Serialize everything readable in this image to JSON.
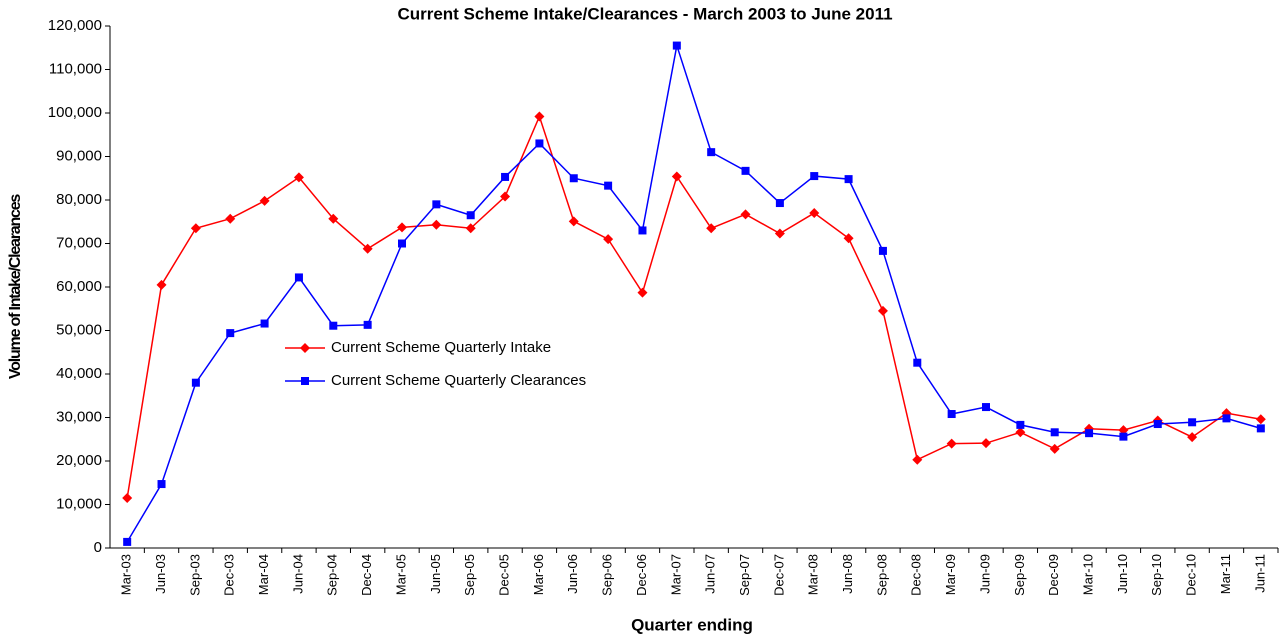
{
  "chart_data": {
    "type": "line",
    "title": "Current Scheme Intake/Clearances - March 2003 to June 2011",
    "x_label": "Quarter ending",
    "y_label": "Volume of Intake/Clearances",
    "categories": [
      "Mar-03",
      "Jun-03",
      "Sep-03",
      "Dec-03",
      "Mar-04",
      "Jun-04",
      "Sep-04",
      "Dec-04",
      "Mar-05",
      "Jun-05",
      "Sep-05",
      "Dec-05",
      "Mar-06",
      "Jun-06",
      "Sep-06",
      "Dec-06",
      "Mar-07",
      "Jun-07",
      "Sep-07",
      "Dec-07",
      "Mar-08",
      "Jun-08",
      "Sep-08",
      "Dec-08",
      "Mar-09",
      "Jun-09",
      "Sep-09",
      "Dec-09",
      "Mar-10",
      "Jun-10",
      "Sep-10",
      "Dec-10",
      "Mar-11",
      "Jun-11"
    ],
    "series": [
      {
        "name": "Current Scheme Quarterly Intake",
        "color": "#ff0000",
        "marker": "diamond",
        "values": [
          11500,
          60500,
          73500,
          75700,
          79800,
          85200,
          75700,
          68800,
          73700,
          74300,
          73500,
          80800,
          99200,
          75100,
          71000,
          58700,
          85400,
          73500,
          76700,
          72300,
          77000,
          71200,
          54500,
          20300,
          24000,
          24100,
          26600,
          22800,
          27400,
          27100,
          29300,
          25500,
          31000,
          29600
        ]
      },
      {
        "name": "Current Scheme Quarterly Clearances",
        "color": "#0000ff",
        "marker": "square",
        "values": [
          1400,
          14700,
          38000,
          49400,
          51600,
          62200,
          51100,
          51300,
          70000,
          79000,
          76500,
          85300,
          93000,
          85000,
          83300,
          73000,
          115500,
          91000,
          86700,
          79300,
          85500,
          84800,
          68300,
          42600,
          30800,
          32400,
          28300,
          26600,
          26400,
          25600,
          28500,
          28900,
          29800,
          27500
        ]
      }
    ],
    "ylim": [
      0,
      120000
    ],
    "yticks": [
      {
        "value": 0,
        "label": "0"
      },
      {
        "value": 10000,
        "label": "10,000"
      },
      {
        "value": 20000,
        "label": "20,000"
      },
      {
        "value": 30000,
        "label": "30,000"
      },
      {
        "value": 40000,
        "label": "40,000"
      },
      {
        "value": 50000,
        "label": "50,000"
      },
      {
        "value": 60000,
        "label": "60,000"
      },
      {
        "value": 70000,
        "label": "70,000"
      },
      {
        "value": 80000,
        "label": "80,000"
      },
      {
        "value": 90000,
        "label": "90,000"
      },
      {
        "value": 100000,
        "label": "100,000"
      },
      {
        "value": 110000,
        "label": "110,000"
      },
      {
        "value": 120000,
        "label": "120,000"
      }
    ],
    "grid": false
  }
}
